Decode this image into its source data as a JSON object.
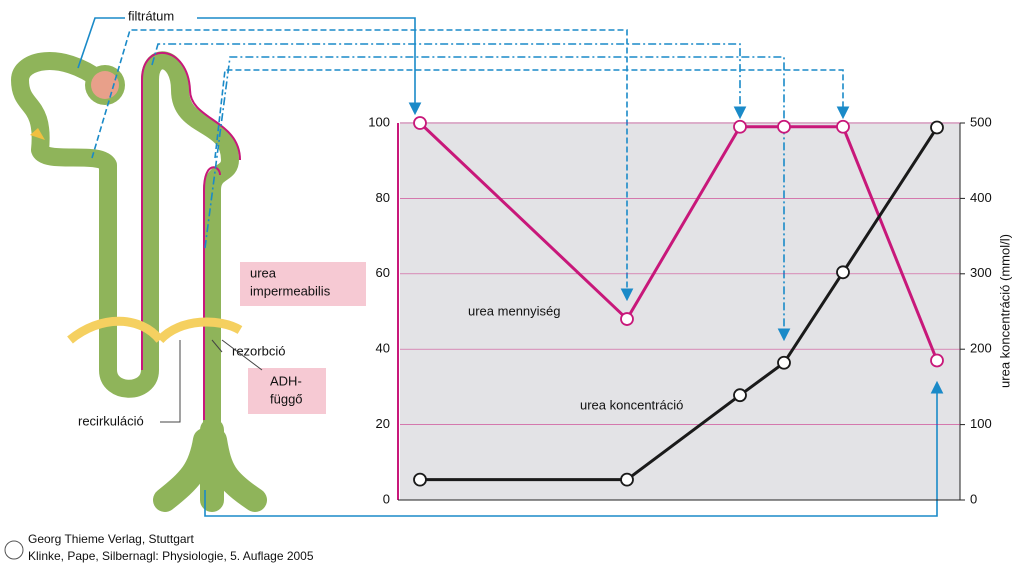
{
  "chart_data": {
    "type": "line",
    "categories": [
      null,
      null,
      null,
      null,
      null,
      null
    ],
    "series": [
      {
        "name": "urea mennyiség",
        "color": "#c8187a",
        "values": [
          100,
          48,
          99,
          99,
          99,
          37
        ]
      },
      {
        "name": "urea koncentráció",
        "color": "#1a1a1a",
        "axis": "y2",
        "values": [
          27,
          27,
          139,
          182,
          302,
          494
        ]
      }
    ],
    "ylim": [
      0,
      100
    ],
    "yticks": [
      0,
      20,
      40,
      60,
      80,
      100
    ],
    "y2lim": [
      0,
      500
    ],
    "y2ticks": [
      0,
      100,
      200,
      300,
      400,
      500
    ],
    "y2label": "urea koncentráció (mmol/l)",
    "grid": true
  },
  "diagram": {
    "filtrate": "filtrátum",
    "impermeable": [
      "urea",
      "impermeabilis"
    ],
    "reabsorption": "rezorbció",
    "adh": [
      "ADH-",
      "függő"
    ],
    "recirculation": "recirkuláció"
  },
  "credits": [
    "Georg Thieme Verlag, Stuttgart",
    "Klinke, Pape, Silbernagl: Physiologie, 5. Auflage 2005"
  ]
}
